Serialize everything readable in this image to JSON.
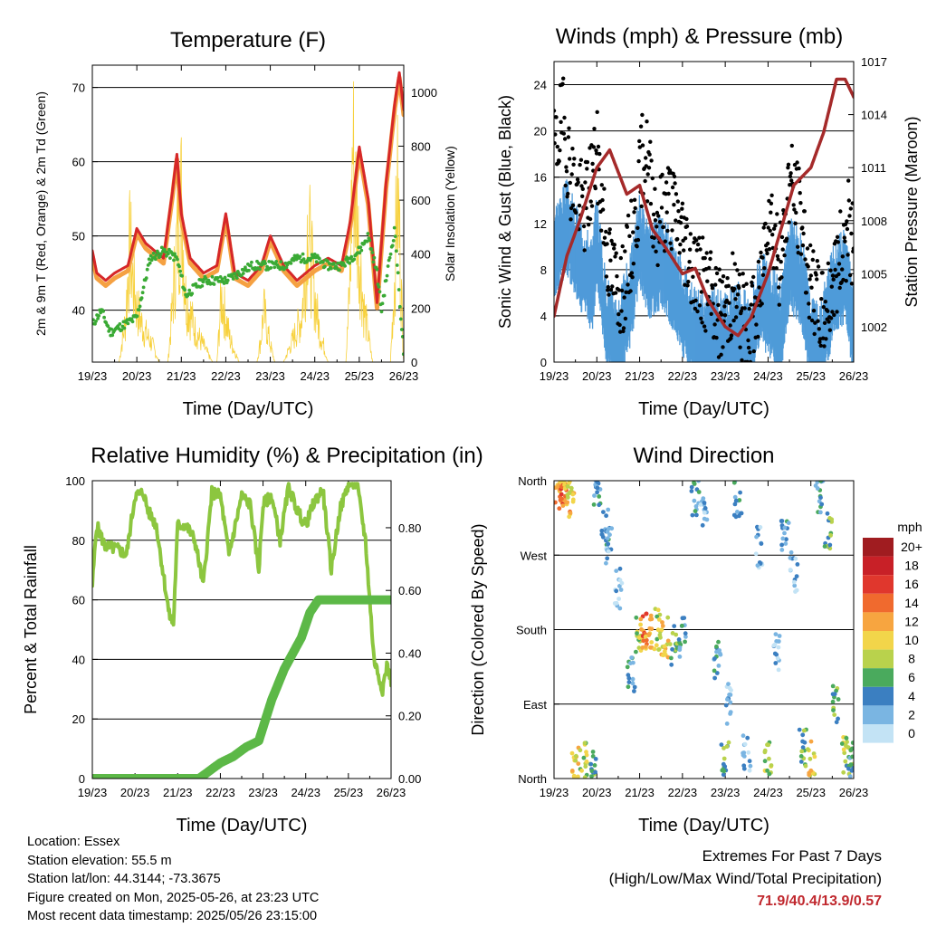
{
  "colors": {
    "temp2m": "#d62728",
    "temp9m": "#f5a142",
    "dewpoint": "#3aaa35",
    "solar": "#f7d13d",
    "wind": "#4f9bd9",
    "gust": "#000000",
    "pressure": "#a52a2a",
    "rh": "#8cc63f",
    "precip": "#5cb847",
    "extremes": "#c0282e"
  },
  "x_ticks": [
    "19/23",
    "20/23",
    "21/23",
    "22/23",
    "23/23",
    "24/23",
    "25/23",
    "26/23"
  ],
  "xlabel": "Time (Day/UTC)",
  "chart_data": [
    {
      "id": "temperature",
      "type": "line",
      "title": "Temperature (F)",
      "xlabel": "Time (Day/UTC)",
      "ylabel": "2m & 9m T (Red, Orange) & 2m Td (Green)",
      "y2label": "Solar Insolation (Yellow)",
      "ylim": [
        33,
        73
      ],
      "y2lim": [
        0,
        1100
      ],
      "yticks": [
        40,
        50,
        60,
        70
      ],
      "y2ticks": [
        0,
        200,
        400,
        600,
        800,
        1000
      ],
      "series": [
        {
          "key": "temp2m",
          "x": [
            0,
            0.1,
            0.3,
            0.5,
            0.8,
            1.0,
            1.2,
            1.4,
            1.6,
            1.8,
            1.9,
            2.0,
            2.2,
            2.5,
            2.8,
            3.0,
            3.2,
            3.5,
            3.8,
            4.0,
            4.3,
            4.6,
            5.0,
            5.3,
            5.6,
            5.8,
            6.0,
            6.2,
            6.4,
            6.6,
            6.8,
            6.9,
            7.0
          ],
          "y": [
            48,
            45,
            44,
            45,
            46,
            51,
            49,
            48,
            47,
            56,
            61,
            53,
            47,
            45,
            46,
            53,
            45,
            44,
            46,
            50,
            46,
            44,
            46,
            47,
            46,
            52,
            62,
            55,
            41,
            57,
            68,
            72,
            67
          ]
        },
        {
          "key": "dewpoint",
          "x": [
            0,
            0.2,
            0.4,
            0.7,
            1.0,
            1.3,
            1.6,
            1.9,
            2.1,
            2.3,
            2.5,
            2.8,
            3.0,
            3.3,
            3.6,
            4.0,
            4.3,
            4.6,
            5.0,
            5.3,
            5.6,
            5.8,
            6.0,
            6.2,
            6.4,
            6.5,
            6.6,
            6.8,
            6.9,
            7.0
          ],
          "y": [
            38,
            40,
            37,
            38,
            39,
            47,
            48,
            47,
            42,
            43,
            44,
            44,
            44,
            45,
            46,
            46,
            46,
            47,
            47,
            46,
            46,
            47,
            48,
            50,
            45,
            40,
            44,
            51,
            42,
            34
          ]
        },
        {
          "key": "solar",
          "x": [
            0,
            0.3,
            0.6,
            0.75,
            0.8,
            0.85,
            0.9,
            1.0,
            1.15,
            1.35,
            1.5,
            1.7,
            1.8,
            1.9,
            2.0,
            2.1,
            2.3,
            2.7,
            2.8,
            2.85,
            2.9,
            3.0,
            3.1,
            3.3,
            3.7,
            3.8,
            3.85,
            3.9,
            4.0,
            4.1,
            4.3,
            4.7,
            4.8,
            4.85,
            4.9,
            5.0,
            5.1,
            5.3,
            5.7,
            5.8,
            5.85,
            5.9,
            6.0,
            6.1,
            6.3,
            6.5,
            6.7,
            6.8,
            6.85,
            6.9,
            7.0
          ],
          "y": [
            0,
            0,
            0,
            200,
            400,
            550,
            400,
            250,
            150,
            80,
            0,
            0,
            250,
            550,
            750,
            300,
            150,
            0,
            0,
            150,
            300,
            200,
            100,
            0,
            0,
            120,
            250,
            180,
            80,
            0,
            0,
            200,
            450,
            700,
            500,
            300,
            150,
            0,
            0,
            400,
            1000,
            800,
            500,
            250,
            0,
            0,
            0,
            400,
            800,
            600,
            0
          ]
        }
      ]
    },
    {
      "id": "winds",
      "type": "line",
      "title": "Winds (mph) & Pressure (mb)",
      "xlabel": "Time (Day/UTC)",
      "ylabel": "Sonic Wind & Gust (Blue, Black)",
      "y2label": "Station Pressure (Maroon)",
      "ylim": [
        0,
        26
      ],
      "y2lim": [
        1000.0,
        1017.0
      ],
      "yticks": [
        0,
        4,
        8,
        12,
        16,
        20,
        24
      ],
      "y2ticks": [
        1002,
        1005,
        1008,
        1011,
        1014,
        1017
      ],
      "series": [
        {
          "key": "wind",
          "x": [
            0,
            0.3,
            0.6,
            0.9,
            1.0,
            1.2,
            1.5,
            1.8,
            2.0,
            2.2,
            2.5,
            2.8,
            3.0,
            3.2,
            3.5,
            3.8,
            4.0,
            4.3,
            4.6,
            4.8,
            5.0,
            5.3,
            5.5,
            5.8,
            6.0,
            6.2,
            6.5,
            6.8,
            7.0
          ],
          "y": [
            10,
            12,
            9,
            7,
            11,
            4,
            2,
            6,
            11,
            8,
            9,
            7,
            5,
            3,
            2,
            3,
            2,
            3,
            2,
            6,
            5,
            3,
            9,
            7,
            2,
            1,
            6,
            8,
            3
          ]
        },
        {
          "key": "gust",
          "x": [
            0,
            0.2,
            0.4,
            0.7,
            1.0,
            1.3,
            1.6,
            1.9,
            2.1,
            2.4,
            2.7,
            3.0,
            3.3,
            3.6,
            3.9,
            4.2,
            4.5,
            4.8,
            5.0,
            5.3,
            5.5,
            5.8,
            6.0,
            6.3,
            6.6,
            6.9,
            7.0
          ],
          "y": [
            18,
            21,
            16,
            13,
            18,
            8,
            6,
            12,
            19,
            12,
            14,
            11,
            8,
            6,
            4,
            6,
            3,
            5,
            14,
            8,
            16,
            12,
            6,
            4,
            8,
            12,
            9
          ]
        },
        {
          "key": "pressure",
          "x": [
            0,
            0.3,
            0.6,
            1.0,
            1.3,
            1.7,
            2.0,
            2.3,
            2.6,
            3.0,
            3.3,
            3.6,
            4.0,
            4.3,
            4.6,
            5.0,
            5.3,
            5.6,
            6.0,
            6.3,
            6.6,
            6.8,
            7.0
          ],
          "y": [
            1002.6,
            1006,
            1008,
            1011,
            1012,
            1009.5,
            1010,
            1007.5,
            1006.5,
            1005,
            1005.3,
            1003.5,
            1002,
            1001.5,
            1002.5,
            1005,
            1007.5,
            1010,
            1011,
            1013,
            1016,
            1016,
            1015
          ]
        }
      ]
    },
    {
      "id": "humidity",
      "type": "line",
      "title": "Relative Humidity (%) & Precipitation (in)",
      "xlabel": "Time (Day/UTC)",
      "ylabel": "Percent & Total Rainfall",
      "ylim": [
        0,
        100
      ],
      "y2lim": [
        0,
        0.95
      ],
      "yticks": [
        0,
        20,
        40,
        60,
        80,
        100
      ],
      "y2ticks": [
        0.0,
        0.2,
        0.4,
        0.6,
        0.8
      ],
      "y2ticklabels": [
        "0.00",
        "0.20",
        "0.40",
        "0.60",
        "0.80"
      ],
      "series": [
        {
          "key": "rh",
          "x": [
            0,
            0.1,
            0.3,
            0.6,
            0.8,
            1.0,
            1.2,
            1.3,
            1.5,
            1.8,
            1.9,
            2.0,
            2.2,
            2.4,
            2.6,
            2.8,
            3.0,
            3.2,
            3.5,
            3.7,
            3.9,
            4.0,
            4.2,
            4.4,
            4.6,
            4.8,
            5.0,
            5.2,
            5.4,
            5.6,
            5.8,
            6.0,
            6.2,
            6.4,
            6.6,
            6.8,
            6.9,
            7.0
          ],
          "y": [
            65,
            85,
            78,
            77,
            75,
            95,
            96,
            90,
            85,
            55,
            52,
            85,
            85,
            80,
            65,
            96,
            95,
            75,
            95,
            92,
            70,
            92,
            95,
            80,
            98,
            90,
            85,
            93,
            97,
            70,
            90,
            99,
            99,
            80,
            40,
            30,
            38,
            33
          ]
        },
        {
          "key": "precip",
          "x": [
            0,
            1.0,
            2.5,
            2.7,
            3.0,
            3.3,
            3.6,
            3.9,
            4.2,
            4.5,
            4.9,
            5.1,
            5.3,
            5.6,
            7.0
          ],
          "y": [
            0,
            0,
            0,
            0.02,
            0.05,
            0.07,
            0.1,
            0.12,
            0.25,
            0.35,
            0.45,
            0.53,
            0.57,
            0.57,
            0.57
          ]
        }
      ]
    },
    {
      "id": "direction",
      "type": "scatter",
      "title": "Wind Direction",
      "xlabel": "Time (Day/UTC)",
      "ylabel": "Direction (Colored By Speed)",
      "ylim": [
        0,
        360
      ],
      "yticklabels": [
        "North",
        "East",
        "South",
        "West",
        "North"
      ],
      "yticks": [
        0,
        90,
        180,
        270,
        360
      ],
      "legend": {
        "title": "mph",
        "labels": [
          "20+",
          "18",
          "16",
          "14",
          "12",
          "10",
          "8",
          "6",
          "4",
          "2",
          "0"
        ],
        "colors": [
          "#a01c20",
          "#c82027",
          "#e0372d",
          "#f06a2e",
          "#f7a540",
          "#f2d54a",
          "#b9d24c",
          "#4aaa5d",
          "#3b7fc1",
          "#7ab5e2",
          "#c3e3f5"
        ]
      },
      "series": [
        {
          "key": "direction",
          "x": [
            0.1,
            0.2,
            0.3,
            0.4,
            0.5,
            0.7,
            0.9,
            1.0,
            1.2,
            1.3,
            1.5,
            1.8,
            2.0,
            2.1,
            2.2,
            2.4,
            2.6,
            2.8,
            3.0,
            3.3,
            3.5,
            3.8,
            4.0,
            4.1,
            4.3,
            4.5,
            4.8,
            5.0,
            5.2,
            5.4,
            5.6,
            5.8,
            6.0,
            6.2,
            6.4,
            6.6,
            6.8,
            6.9,
            7.0
          ],
          "y": [
            350,
            345,
            340,
            355,
            15,
            20,
            10,
            355,
            300,
            280,
            230,
            130,
            170,
            180,
            175,
            180,
            170,
            160,
            170,
            340,
            320,
            140,
            20,
            90,
            340,
            30,
            280,
            20,
            150,
            300,
            250,
            40,
            20,
            340,
            300,
            90,
            30,
            20,
            10
          ],
          "s": [
            12,
            14,
            12,
            10,
            10,
            8,
            6,
            4,
            4,
            2,
            2,
            4,
            8,
            14,
            12,
            8,
            10,
            6,
            4,
            4,
            2,
            4,
            6,
            2,
            4,
            2,
            2,
            8,
            2,
            4,
            2,
            6,
            10,
            4,
            6,
            6,
            8,
            6,
            4
          ]
        }
      ]
    }
  ],
  "info": {
    "location": "Location: Essex",
    "elevation": "Station elevation: 55.5 m",
    "latlon": "Station lat/lon: 44.3144; -73.3675",
    "created": "Figure created on Mon, 2025-05-26, at 23:23 UTC",
    "recent": "Most recent data timestamp: 2025/05/26 23:15:00"
  },
  "extremes": {
    "title": "Extremes For Past 7 Days",
    "subtitle": "(High/Low/Max Wind/Total Precipitation)",
    "values": "71.9/40.4/13.9/0.57"
  }
}
